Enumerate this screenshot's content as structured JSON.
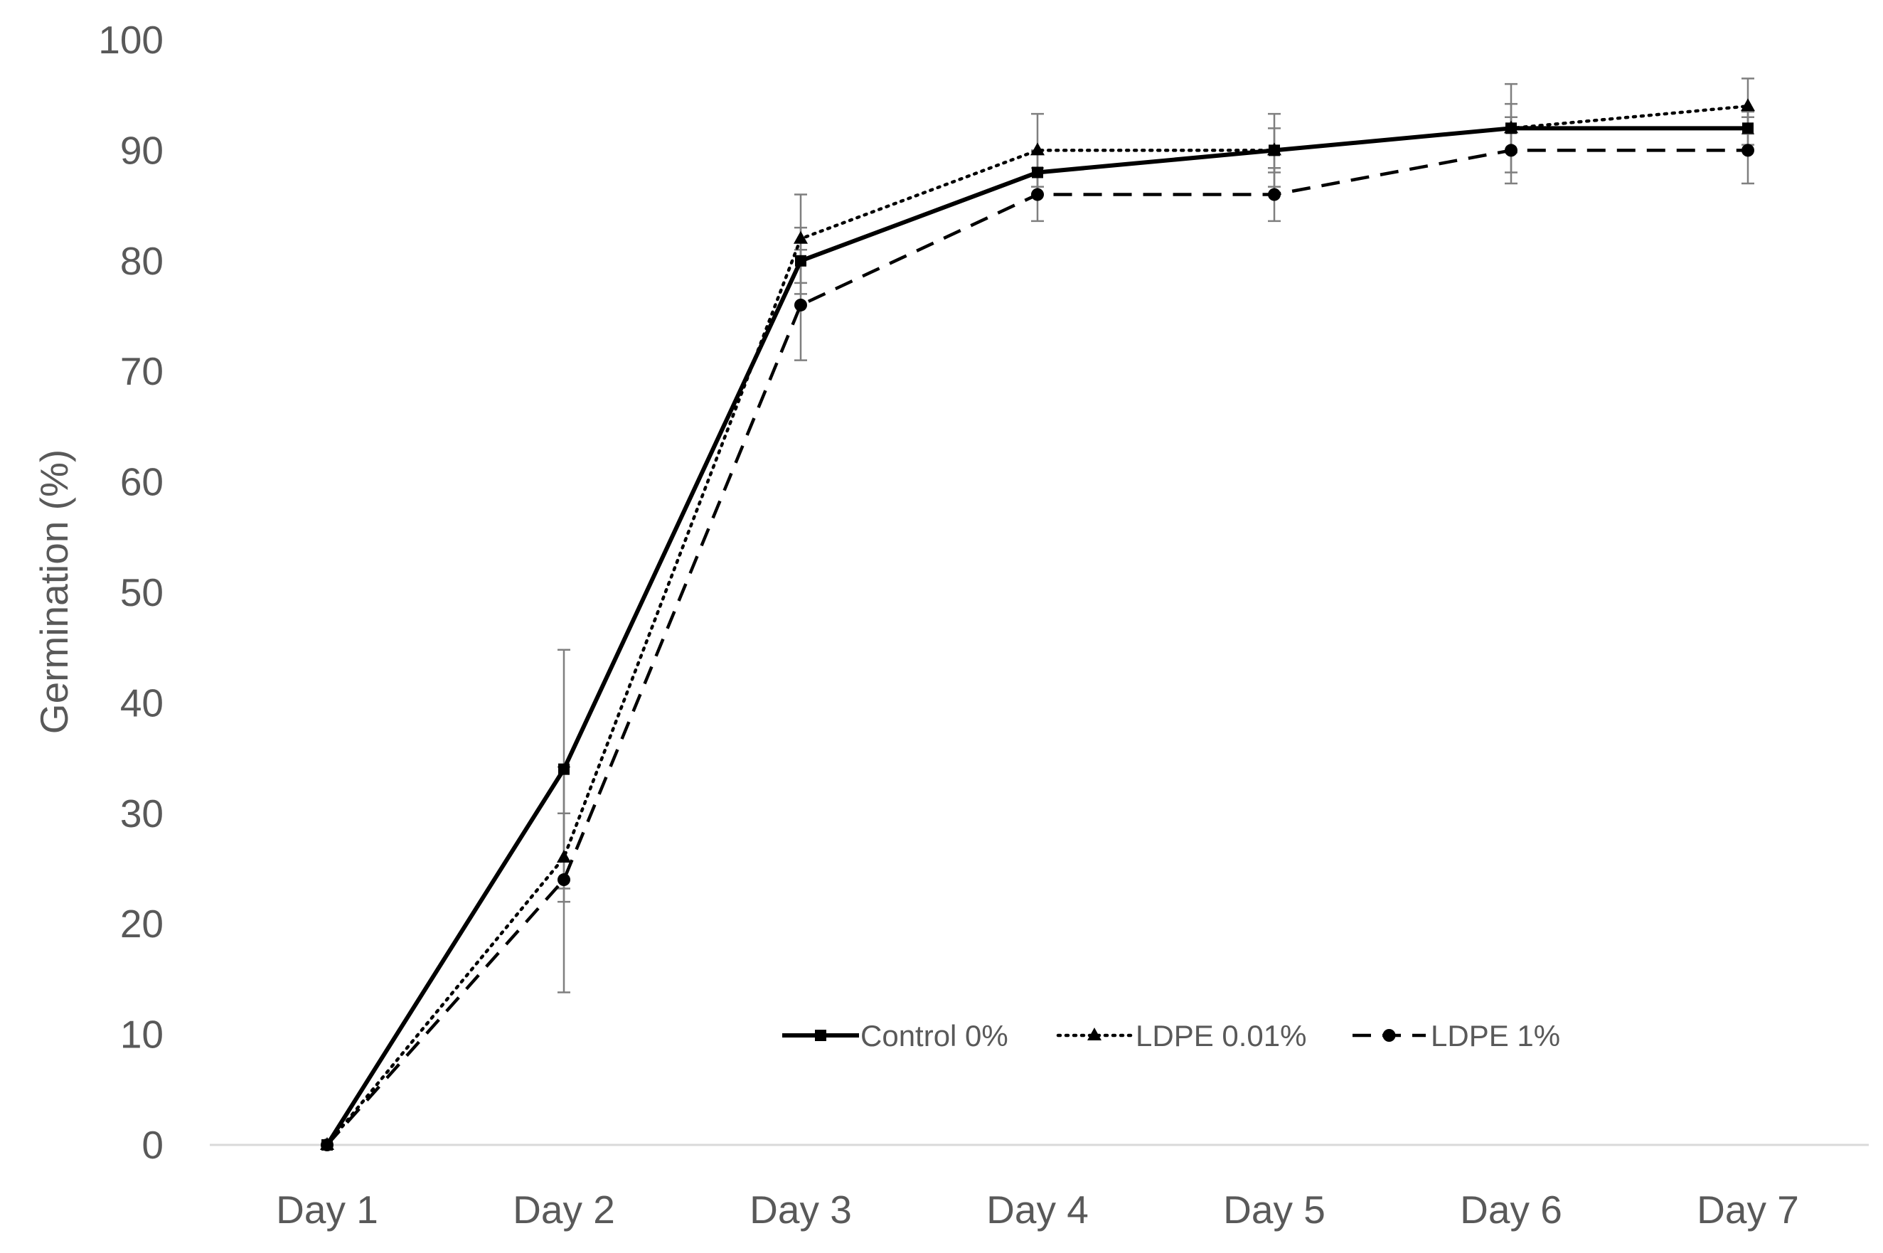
{
  "chart_data": {
    "type": "line",
    "title": "",
    "xlabel": "",
    "ylabel": "Germination  (%)",
    "categories": [
      "Day 1",
      "Day 2",
      "Day 3",
      "Day 4",
      "Day 5",
      "Day 6",
      "Day 7"
    ],
    "ylim": [
      0,
      100
    ],
    "yticks": [
      0,
      10,
      20,
      30,
      40,
      50,
      60,
      70,
      80,
      90,
      100
    ],
    "grid": false,
    "legend_position": "bottom-right",
    "series": [
      {
        "name": "Control 0%",
        "values": [
          0,
          34,
          80,
          88,
          90,
          92,
          92
        ],
        "error": [
          0,
          10.8,
          3,
          2,
          3.3,
          2.2,
          1.5
        ],
        "line_style": "solid",
        "marker": "square",
        "color": "#000000"
      },
      {
        "name": "LDPE 0.01%",
        "values": [
          0,
          26,
          82,
          90,
          90,
          92,
          94
        ],
        "error": [
          0,
          4,
          4,
          3.3,
          2,
          4,
          2.5
        ],
        "line_style": "dotted",
        "marker": "triangle",
        "color": "#000000"
      },
      {
        "name": "LDPE 1%",
        "values": [
          0,
          24,
          76,
          86,
          86,
          90,
          90
        ],
        "error": [
          0,
          10.2,
          5,
          2.4,
          2.4,
          3,
          3
        ],
        "line_style": "dashed",
        "marker": "circle",
        "color": "#000000"
      }
    ]
  }
}
